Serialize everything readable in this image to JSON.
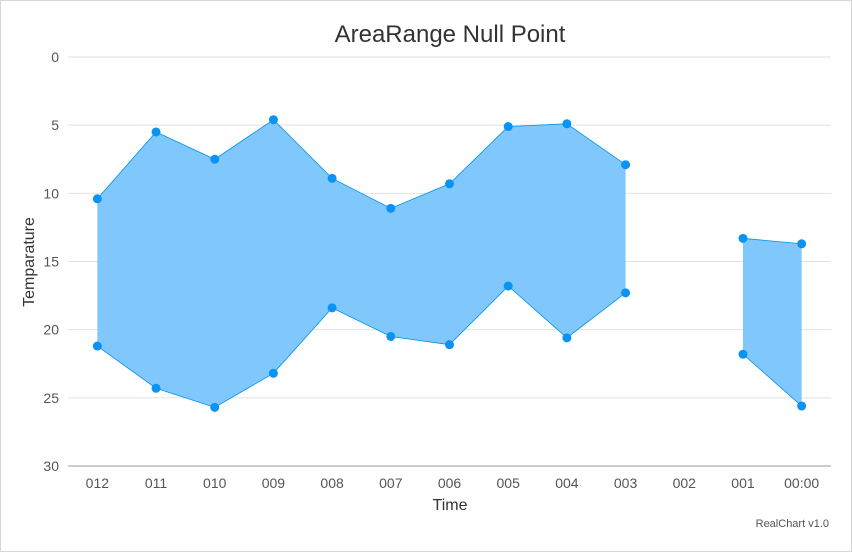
{
  "chart_data": {
    "type": "area",
    "subtype": "arearange",
    "title": "AreaRange Null Point",
    "xlabel": "Time",
    "ylabel": "Temparature",
    "categories": [
      "012",
      "011",
      "010",
      "009",
      "008",
      "007",
      "006",
      "005",
      "004",
      "003",
      "002",
      "001",
      "00:00"
    ],
    "ylim": [
      0,
      30
    ],
    "y_reversed": true,
    "y_ticks": [
      "0",
      "5",
      "10",
      "15",
      "20",
      "25",
      "30"
    ],
    "grid": true,
    "series": [
      {
        "low": [
          10.4,
          5.5,
          7.5,
          4.6,
          8.9,
          11.1,
          9.3,
          5.1,
          4.9,
          7.9,
          null,
          13.3,
          13.7
        ],
        "high": [
          21.2,
          24.3,
          25.7,
          23.2,
          18.4,
          20.5,
          21.1,
          16.8,
          20.6,
          17.3,
          null,
          21.8,
          25.6
        ]
      }
    ],
    "colors": {
      "fill": "#80c8fc",
      "line": "#0091f0",
      "point": "#0a93f2"
    },
    "credit": "RealChart v1.0"
  }
}
